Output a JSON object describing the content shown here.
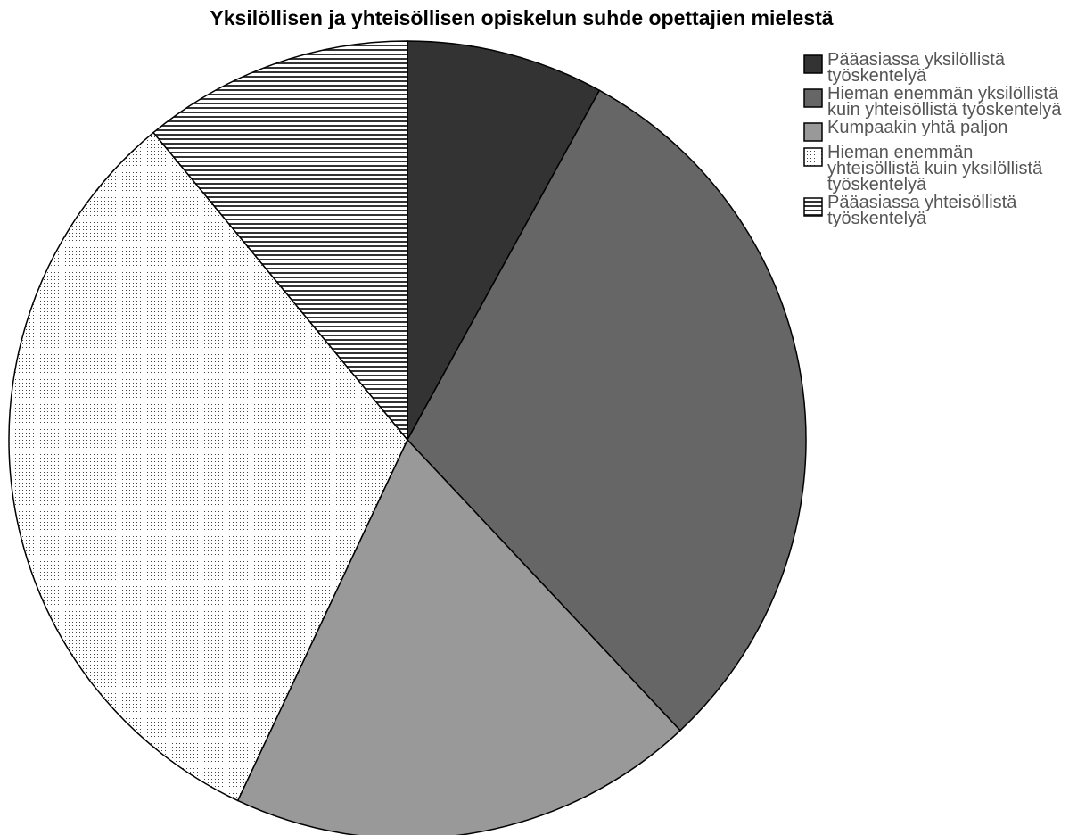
{
  "chart_data": {
    "type": "pie",
    "title": "Yksilöllisen ja yhteisöllisen opiskelun suhde opettajien mielestä",
    "categories": [
      "Pääasiassa yksilöllistä työskentelyä",
      "Hieman enemmän yksilöllistä kuin yhteisöllistä työskentelyä",
      "Kumpaakin yhtä paljon",
      "Hieman enemmän yhteisöllistä kuin yksilöllistä työskentelyä",
      "Pääasiassa yhteisöllistä työskentelyä"
    ],
    "values": [
      8,
      30,
      19,
      32,
      11
    ],
    "colors": [
      "#333333",
      "#666666",
      "#999999",
      "url(#dots)",
      "url(#stripes)"
    ],
    "legend": "right"
  }
}
